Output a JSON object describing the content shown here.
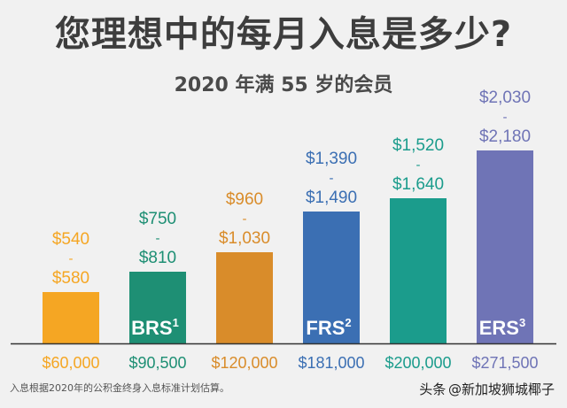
{
  "title": "您理想中的每月入息是多少?",
  "subtitle": "2020 年满 55 岁的会员",
  "chart_data": {
    "type": "bar",
    "categories": [
      "$60,000",
      "$90,500",
      "$120,000",
      "$181,000",
      "$200,000",
      "$271,500"
    ],
    "value_ranges": [
      {
        "low": 540,
        "high": 580,
        "low_label": "$540",
        "high_label": "$580"
      },
      {
        "low": 750,
        "high": 810,
        "low_label": "$750",
        "high_label": "$810"
      },
      {
        "low": 960,
        "high": 1030,
        "low_label": "$960",
        "high_label": "$1,030"
      },
      {
        "low": 1390,
        "high": 1490,
        "low_label": "$1,390",
        "high_label": "$1,490"
      },
      {
        "low": 1520,
        "high": 1640,
        "low_label": "$1,520",
        "high_label": "$1,640"
      },
      {
        "low": 2030,
        "high": 2180,
        "low_label": "$2,030",
        "high_label": "$2,180"
      }
    ],
    "bar_labels": [
      {
        "text": "",
        "sup": ""
      },
      {
        "text": "BRS",
        "sup": "1"
      },
      {
        "text": "",
        "sup": ""
      },
      {
        "text": "FRS",
        "sup": "2"
      },
      {
        "text": "",
        "sup": ""
      },
      {
        "text": "ERS",
        "sup": "3"
      }
    ],
    "colors": [
      "#f5a623",
      "#1e8f74",
      "#d98c2a",
      "#3b6fb3",
      "#1b9c8c",
      "#6f74b6"
    ],
    "range_separator": "-",
    "grid": false,
    "ylim": [
      0,
      2400
    ]
  },
  "footnote": "入息根据2020年的公积金终身入息标准计划估算。",
  "watermark": {
    "logo": "头条",
    "handle": "@新加坡狮城椰子"
  }
}
